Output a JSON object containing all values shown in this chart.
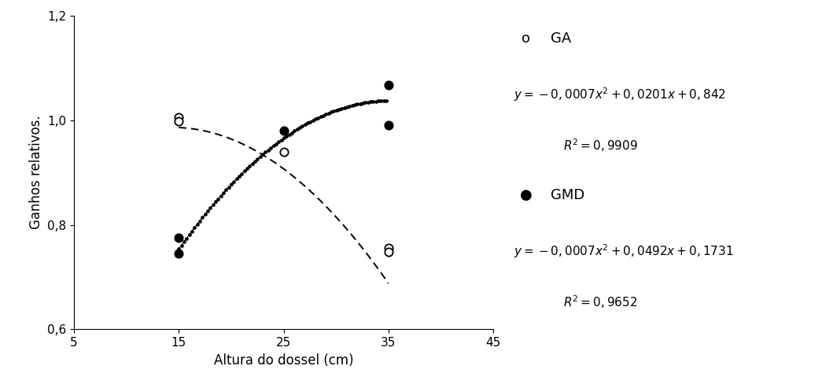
{
  "xlabel": "Altura do dossel (cm)",
  "ylabel": "Ganhos relativos.",
  "xlim": [
    5,
    45
  ],
  "ylim": [
    0.6,
    1.2
  ],
  "xticks": [
    5,
    15,
    25,
    35,
    45
  ],
  "yticks": [
    0.6,
    0.8,
    1.0,
    1.2
  ],
  "ytick_labels": [
    "0,6",
    "0,8",
    "1,0",
    "1,2"
  ],
  "GA_scatter_x": [
    15,
    15,
    25,
    35,
    35
  ],
  "GA_scatter_y": [
    1.005,
    0.998,
    0.94,
    0.755,
    0.748
  ],
  "GMD_scatter_x": [
    15,
    15,
    25,
    35,
    35
  ],
  "GMD_scatter_y": [
    0.775,
    0.745,
    0.98,
    1.068,
    0.99
  ],
  "GA_eq_a": -0.0007,
  "GA_eq_b": 0.0201,
  "GA_eq_c": 0.842,
  "GMD_eq_a": -0.0007,
  "GMD_eq_b": 0.0492,
  "GMD_eq_c": 0.1731,
  "curve_x_min": 15,
  "curve_x_max": 35,
  "legend_GA_label": "GA",
  "legend_GMD_label": "GMD",
  "eq_GA_line1": "$y = -0,0007x^{2} + 0,0201x + 0,842$",
  "eq_GA_line2": "$R^{2} = 0,9909$",
  "eq_GMD_line1": "$y = -0,0007x^{2} + 0,0492x + 0,1731$",
  "eq_GMD_line2": "$R^{2} = 0,9652$",
  "background_color": "#ffffff",
  "fontsize_axis_label": 12,
  "fontsize_tick": 11,
  "fontsize_legend": 13,
  "fontsize_eq": 11
}
